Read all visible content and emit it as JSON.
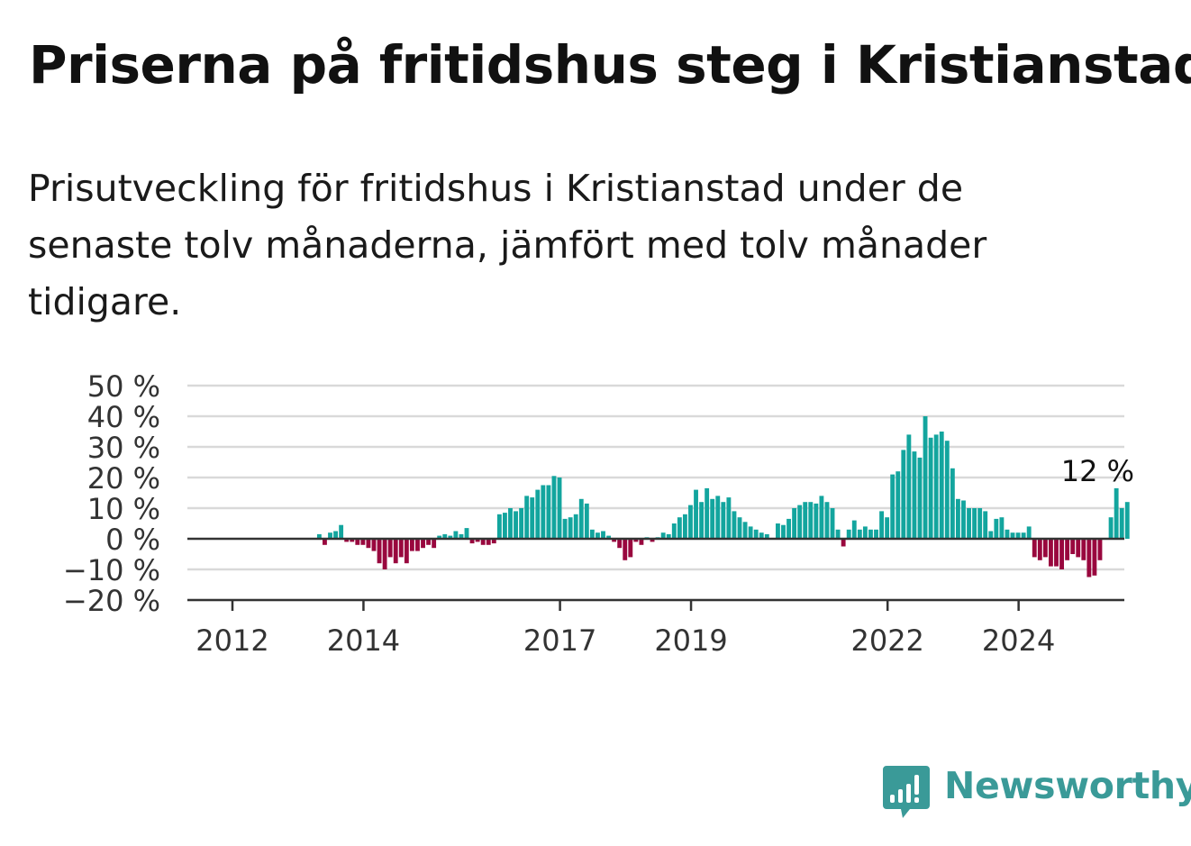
{
  "title": "Priserna på fritidshus steg i Kristianstad",
  "subtitle": "Prisutveckling för fritidshus i Kristianstad under de senaste tolv månaderna, jämfört med tolv månader tidigare.",
  "brand": {
    "name": "Newsworthy",
    "color": "#3a9a98"
  },
  "colors": {
    "positive": "#13a59e",
    "negative": "#99073e",
    "grid": "#d9d9d9",
    "axis": "#333333"
  },
  "chart_data": {
    "type": "bar",
    "ylim": [
      -20,
      50
    ],
    "yticks": [
      50,
      40,
      30,
      20,
      10,
      0,
      -10,
      -20
    ],
    "ytick_labels": [
      "50 %",
      "40 %",
      "30 %",
      "20 %",
      "10 %",
      "0 %",
      "−10 %",
      "−20 %"
    ],
    "xticks": [
      {
        "year": 2012,
        "label": "2012"
      },
      {
        "year": 2014,
        "label": "2014"
      },
      {
        "year": 2017,
        "label": "2017"
      },
      {
        "year": 2019,
        "label": "2019"
      },
      {
        "year": 2022,
        "label": "2022"
      },
      {
        "year": 2024,
        "label": "2024"
      }
    ],
    "start_month": "2012-01",
    "annotation": {
      "text": "12 %",
      "month": "2025-02"
    },
    "values": [
      0,
      0,
      0,
      0,
      0,
      0,
      0,
      0,
      0,
      0,
      0,
      0,
      0,
      0,
      0,
      0,
      1.5,
      -2,
      2,
      2.5,
      4.5,
      -1,
      -1,
      -2,
      -2,
      -3,
      -4,
      -8,
      -10,
      -6,
      -8,
      -6,
      -8,
      -4,
      -4,
      -3,
      -2,
      -3,
      1,
      1.5,
      1,
      2.5,
      1.5,
      3.5,
      -1.5,
      -1,
      -2,
      -2,
      -1.5,
      8,
      8.5,
      10,
      9,
      10,
      14,
      13.5,
      16,
      17.5,
      17.5,
      20.5,
      20,
      6.5,
      7,
      8,
      13,
      11.5,
      3,
      2,
      2.5,
      1,
      -1,
      -3,
      -7,
      -6,
      -1,
      -2,
      0.5,
      -1,
      0.5,
      2,
      1.5,
      5,
      7,
      8,
      11,
      16,
      12,
      16.5,
      13,
      14,
      12,
      13.5,
      9,
      7,
      5.5,
      4,
      3,
      2,
      1.5,
      0,
      5,
      4.5,
      6.5,
      10,
      11,
      12,
      12,
      11.5,
      14,
      12,
      10,
      3,
      -2.5,
      3,
      6,
      3,
      4,
      3,
      3,
      9,
      7,
      21,
      22,
      29,
      34,
      28.5,
      26.5,
      40,
      33,
      34,
      35,
      32,
      23,
      13,
      12.5,
      10,
      10,
      10,
      9,
      2.5,
      6.5,
      7,
      3,
      2,
      2,
      2,
      4,
      -6,
      -7,
      -6,
      -9,
      -9,
      -10,
      -7,
      -5,
      -6,
      -7,
      -12.5,
      -12,
      -7,
      0,
      7,
      16.5,
      10,
      12
    ]
  }
}
